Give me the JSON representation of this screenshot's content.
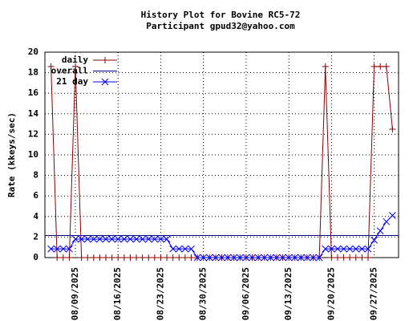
{
  "chart_data": {
    "type": "line",
    "title": "History Plot for Bovine RC5-72",
    "subtitle": "Participant gpud32@yahoo.com",
    "y_label": "Rate (kkeys/sec)",
    "ylim": [
      0,
      20
    ],
    "yticks": [
      0,
      2,
      4,
      6,
      8,
      10,
      12,
      14,
      16,
      18,
      20
    ],
    "xlim": [
      "08/04/2025",
      "10/01/2025"
    ],
    "xticks": [
      "08/09/2025",
      "08/16/2025",
      "08/23/2025",
      "08/30/2025",
      "09/06/2025",
      "09/13/2025",
      "09/20/2025",
      "09/27/2025"
    ],
    "grid": true,
    "legend": "upper left",
    "x": [
      "08/05/2025",
      "08/06/2025",
      "08/07/2025",
      "08/08/2025",
      "08/09/2025",
      "08/10/2025",
      "08/11/2025",
      "08/12/2025",
      "08/13/2025",
      "08/14/2025",
      "08/15/2025",
      "08/16/2025",
      "08/17/2025",
      "08/18/2025",
      "08/19/2025",
      "08/20/2025",
      "08/21/2025",
      "08/22/2025",
      "08/23/2025",
      "08/24/2025",
      "08/25/2025",
      "08/26/2025",
      "08/27/2025",
      "08/28/2025",
      "08/29/2025",
      "08/30/2025",
      "08/31/2025",
      "09/01/2025",
      "09/02/2025",
      "09/03/2025",
      "09/04/2025",
      "09/05/2025",
      "09/06/2025",
      "09/07/2025",
      "09/08/2025",
      "09/09/2025",
      "09/10/2025",
      "09/11/2025",
      "09/12/2025",
      "09/13/2025",
      "09/14/2025",
      "09/15/2025",
      "09/16/2025",
      "09/17/2025",
      "09/18/2025",
      "09/19/2025",
      "09/20/2025",
      "09/21/2025",
      "09/22/2025",
      "09/23/2025",
      "09/24/2025",
      "09/25/2025",
      "09/26/2025",
      "09/27/2025",
      "09/28/2025",
      "09/29/2025",
      "09/30/2025"
    ],
    "series": [
      {
        "name": "daily",
        "color": "#8b0000",
        "marker": "plus",
        "values": [
          18.6,
          0,
          0,
          0,
          18.6,
          0,
          0,
          0,
          0,
          0,
          0,
          0,
          0,
          0,
          0,
          0,
          0,
          0,
          0,
          0,
          0,
          0,
          0,
          0,
          0,
          0,
          0,
          0,
          0,
          0,
          0,
          0,
          0,
          0,
          0,
          0,
          0,
          0,
          0,
          0,
          0,
          0,
          0,
          0,
          0,
          18.6,
          0,
          0,
          0,
          0,
          0,
          0,
          0,
          18.6,
          18.6,
          18.6,
          12.5
        ]
      },
      {
        "name": "overall",
        "color": "#000080",
        "value": 2.15
      },
      {
        "name": "21 day",
        "color": "#0000ff",
        "marker": "cross",
        "values": [
          0.85,
          0.85,
          0.85,
          0.85,
          1.8,
          1.8,
          1.8,
          1.8,
          1.8,
          1.8,
          1.8,
          1.8,
          1.8,
          1.8,
          1.8,
          1.8,
          1.8,
          1.8,
          1.8,
          1.8,
          0.85,
          0.85,
          0.85,
          0.85,
          0,
          0,
          0,
          0,
          0,
          0,
          0,
          0,
          0,
          0,
          0,
          0,
          0,
          0,
          0,
          0,
          0,
          0,
          0,
          0,
          0,
          0.85,
          0.85,
          0.85,
          0.85,
          0.85,
          0.85,
          0.85,
          0.85,
          1.7,
          2.6,
          3.5,
          4.1
        ]
      }
    ]
  }
}
